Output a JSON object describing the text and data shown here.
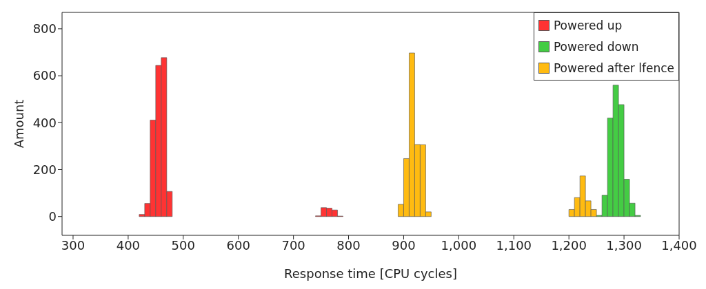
{
  "chart_data": {
    "type": "histogram",
    "xlabel": "Response time [CPU cycles]",
    "ylabel": "Amount",
    "xlim": [
      280,
      1400
    ],
    "ylim": [
      -80,
      870
    ],
    "xticks": [
      300,
      400,
      500,
      600,
      700,
      800,
      900,
      {
        "value": 1000,
        "label": "1,000"
      },
      {
        "value": 1100,
        "label": "1,100"
      },
      {
        "value": 1200,
        "label": "1,200"
      },
      {
        "value": 1300,
        "label": "1,300"
      },
      {
        "value": 1400,
        "label": "1,400"
      }
    ],
    "yticks": [
      0,
      200,
      400,
      600,
      800
    ],
    "legend": "top right",
    "bins": [
      420,
      430,
      440,
      450,
      460,
      470,
      480,
      490,
      500,
      510,
      520,
      530,
      540,
      550,
      560,
      570,
      580,
      590,
      600,
      610,
      620,
      630,
      640,
      650,
      660,
      670,
      680,
      690,
      700,
      710,
      720,
      730,
      740,
      750,
      760,
      770,
      780,
      790,
      800,
      810,
      820,
      830,
      840,
      850,
      860,
      870,
      880,
      890,
      900,
      910,
      920,
      930,
      940,
      950,
      960,
      970,
      980,
      990,
      1000,
      1010,
      1020,
      1030,
      1040,
      1050,
      1060,
      1070,
      1080,
      1090,
      1100,
      1110,
      1120,
      1130,
      1140,
      1150,
      1160,
      1170,
      1180,
      1190,
      1200,
      1210,
      1220,
      1230,
      1240,
      1250,
      1260,
      1270,
      1280,
      1290,
      1300,
      1310,
      1320,
      1330
    ],
    "series": [
      {
        "name": "Powered up",
        "color": "#ff3333",
        "values": [
          9,
          56,
          411,
          644,
          677,
          107,
          0,
          0,
          0,
          0,
          0,
          0,
          0,
          0,
          0,
          0,
          0,
          0,
          0,
          0,
          0,
          0,
          0,
          0,
          0,
          0,
          0,
          0,
          0,
          0,
          0,
          0,
          3,
          38,
          36,
          28,
          2,
          0,
          0,
          0,
          0,
          0,
          0,
          0,
          0,
          0,
          0,
          0,
          0,
          0,
          0,
          0,
          0,
          0,
          0,
          0,
          0,
          0,
          0,
          0,
          0,
          0,
          0,
          0,
          0,
          0,
          0,
          0,
          0,
          0,
          0,
          0,
          0,
          0,
          0,
          0,
          0,
          0,
          0,
          0,
          0,
          0,
          0,
          0,
          0,
          0,
          0,
          0,
          0,
          0,
          0
        ]
      },
      {
        "name": "Powered down",
        "color": "#44cc44",
        "values": [
          0,
          0,
          0,
          0,
          0,
          0,
          0,
          0,
          0,
          0,
          0,
          0,
          0,
          0,
          0,
          0,
          0,
          0,
          0,
          0,
          0,
          0,
          0,
          0,
          0,
          0,
          0,
          0,
          0,
          0,
          0,
          0,
          0,
          0,
          0,
          0,
          0,
          0,
          0,
          0,
          0,
          0,
          0,
          0,
          0,
          0,
          0,
          0,
          0,
          0,
          0,
          0,
          0,
          0,
          0,
          0,
          0,
          0,
          0,
          0,
          0,
          0,
          0,
          0,
          0,
          0,
          0,
          0,
          0,
          0,
          0,
          0,
          0,
          0,
          0,
          0,
          0,
          0,
          0,
          0,
          0,
          0,
          0,
          5,
          91,
          420,
          560,
          477,
          159,
          57,
          5
        ]
      },
      {
        "name": "Powered after lfence",
        "color": "#ffbb11",
        "values": [
          0,
          0,
          0,
          0,
          0,
          0,
          0,
          0,
          0,
          0,
          0,
          0,
          0,
          0,
          0,
          0,
          0,
          0,
          0,
          0,
          0,
          0,
          0,
          0,
          0,
          0,
          0,
          0,
          0,
          0,
          0,
          0,
          0,
          0,
          0,
          0,
          0,
          0,
          0,
          0,
          0,
          0,
          0,
          0,
          0,
          0,
          0,
          52,
          247,
          697,
          307,
          306,
          20,
          0,
          0,
          0,
          0,
          0,
          0,
          0,
          0,
          0,
          0,
          0,
          0,
          0,
          0,
          0,
          0,
          0,
          0,
          0,
          0,
          0,
          0,
          0,
          0,
          0,
          30,
          81,
          173,
          67,
          30,
          0,
          0,
          0,
          0,
          0,
          0,
          0,
          0
        ]
      }
    ]
  }
}
